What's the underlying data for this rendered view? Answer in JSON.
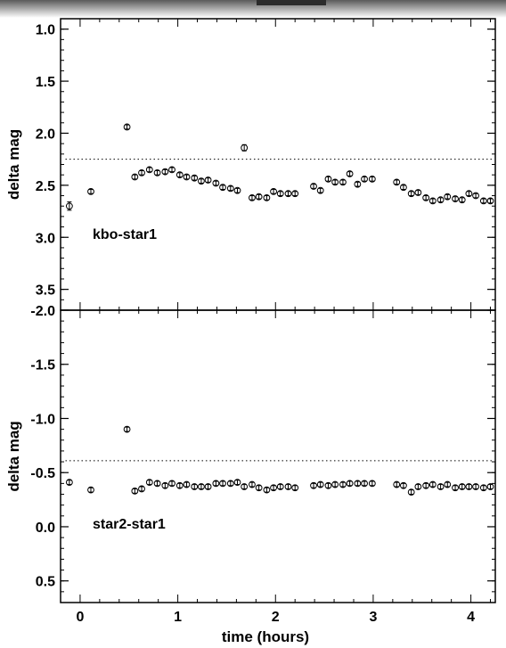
{
  "chart_data": [
    {
      "type": "scatter",
      "title": "",
      "panel_label": "kbo-star1",
      "xlabel": "",
      "ylabel": "delta mag",
      "xlim": [
        -0.2,
        4.25
      ],
      "ylim": [
        3.7,
        0.9
      ],
      "y_inverted": true,
      "yticks": [
        1.0,
        1.5,
        2.0,
        2.5,
        3.0,
        3.5
      ],
      "ytick_labels": [
        "1.0",
        "1.5",
        "2.0",
        "2.5",
        "3.0",
        "3.5"
      ],
      "reference_line": {
        "style": "dotted",
        "y": 2.25
      },
      "marker": "open-circle-with-errorbar",
      "series": [
        {
          "x": [
            -0.11,
            0.11,
            0.48,
            0.56,
            0.63,
            0.71,
            0.79,
            0.87,
            0.94,
            1.02,
            1.09,
            1.17,
            1.24,
            1.31,
            1.39,
            1.46,
            1.54,
            1.61,
            1.68,
            1.76,
            1.83,
            1.91,
            1.98,
            2.05,
            2.13,
            2.2,
            2.39,
            2.46,
            2.54,
            2.61,
            2.69,
            2.76,
            2.84,
            2.91,
            2.99,
            3.24,
            3.31,
            3.39,
            3.46,
            3.54,
            3.61,
            3.69,
            3.76,
            3.84,
            3.91,
            3.98,
            4.05,
            4.13,
            4.2
          ],
          "y": [
            2.7,
            2.56,
            1.94,
            2.42,
            2.38,
            2.35,
            2.38,
            2.37,
            2.35,
            2.4,
            2.42,
            2.43,
            2.46,
            2.45,
            2.48,
            2.52,
            2.53,
            2.55,
            2.14,
            2.62,
            2.61,
            2.62,
            2.56,
            2.58,
            2.58,
            2.58,
            2.51,
            2.55,
            2.44,
            2.47,
            2.47,
            2.39,
            2.49,
            2.44,
            2.44,
            2.47,
            2.52,
            2.58,
            2.57,
            2.62,
            2.65,
            2.64,
            2.61,
            2.63,
            2.64,
            2.58,
            2.6,
            2.65,
            2.65
          ],
          "yerr": [
            0.04,
            0.02,
            0.02,
            0.02,
            0.02,
            0.02,
            0.02,
            0.02,
            0.02,
            0.02,
            0.02,
            0.02,
            0.02,
            0.02,
            0.02,
            0.02,
            0.02,
            0.02,
            0.03,
            0.02,
            0.02,
            0.02,
            0.02,
            0.02,
            0.02,
            0.02,
            0.02,
            0.02,
            0.02,
            0.02,
            0.02,
            0.02,
            0.02,
            0.02,
            0.02,
            0.02,
            0.02,
            0.02,
            0.02,
            0.02,
            0.02,
            0.02,
            0.02,
            0.02,
            0.02,
            0.02,
            0.02,
            0.02,
            0.02
          ]
        }
      ]
    },
    {
      "type": "scatter",
      "title": "",
      "panel_label": "star2-star1",
      "xlabel": "time (hours)",
      "ylabel": "delta mag",
      "xlim": [
        -0.2,
        4.25
      ],
      "ylim": [
        0.7,
        -2.0
      ],
      "y_inverted": true,
      "yticks": [
        -2.0,
        -1.5,
        -1.0,
        -0.5,
        0.0,
        0.5
      ],
      "ytick_labels": [
        "-2.0",
        "-1.5",
        "-1.0",
        "-0.5",
        "0.0",
        "0.5"
      ],
      "xticks": [
        0,
        1,
        2,
        3,
        4
      ],
      "xtick_labels": [
        "0",
        "1",
        "2",
        "3",
        "4"
      ],
      "reference_line": {
        "style": "dotted",
        "y": -0.61
      },
      "marker": "open-circle-with-errorbar",
      "series": [
        {
          "x": [
            -0.11,
            0.11,
            0.48,
            0.56,
            0.63,
            0.71,
            0.79,
            0.87,
            0.94,
            1.02,
            1.09,
            1.17,
            1.24,
            1.31,
            1.39,
            1.46,
            1.54,
            1.61,
            1.68,
            1.76,
            1.83,
            1.91,
            1.98,
            2.05,
            2.13,
            2.2,
            2.39,
            2.46,
            2.54,
            2.61,
            2.69,
            2.76,
            2.84,
            2.91,
            2.99,
            3.24,
            3.31,
            3.39,
            3.46,
            3.54,
            3.61,
            3.69,
            3.76,
            3.84,
            3.91,
            3.98,
            4.05,
            4.13,
            4.2
          ],
          "y": [
            -0.41,
            -0.34,
            -0.9,
            -0.33,
            -0.35,
            -0.41,
            -0.4,
            -0.38,
            -0.4,
            -0.38,
            -0.39,
            -0.37,
            -0.37,
            -0.37,
            -0.4,
            -0.4,
            -0.4,
            -0.41,
            -0.37,
            -0.39,
            -0.36,
            -0.34,
            -0.36,
            -0.37,
            -0.37,
            -0.36,
            -0.38,
            -0.39,
            -0.38,
            -0.39,
            -0.39,
            -0.4,
            -0.4,
            -0.4,
            -0.4,
            -0.39,
            -0.38,
            -0.32,
            -0.37,
            -0.38,
            -0.39,
            -0.37,
            -0.39,
            -0.36,
            -0.37,
            -0.37,
            -0.37,
            -0.36,
            -0.37
          ],
          "yerr": [
            0.02,
            0.02,
            0.02,
            0.02,
            0.02,
            0.02,
            0.02,
            0.02,
            0.02,
            0.02,
            0.02,
            0.02,
            0.02,
            0.02,
            0.02,
            0.02,
            0.02,
            0.02,
            0.02,
            0.02,
            0.02,
            0.02,
            0.02,
            0.02,
            0.02,
            0.02,
            0.02,
            0.02,
            0.02,
            0.02,
            0.02,
            0.02,
            0.02,
            0.02,
            0.02,
            0.02,
            0.02,
            0.02,
            0.02,
            0.02,
            0.02,
            0.02,
            0.02,
            0.02,
            0.02,
            0.02,
            0.02,
            0.02,
            0.02
          ]
        }
      ]
    }
  ]
}
